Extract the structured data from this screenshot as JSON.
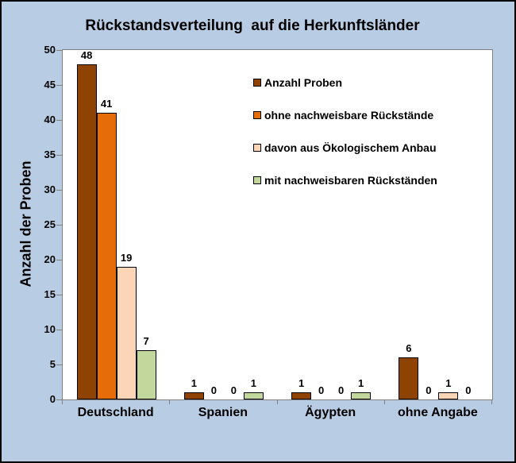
{
  "chart_data": {
    "type": "bar",
    "title": "Rückstandsverteilung  auf die Herkunftsländer",
    "ylabel": "Anzahl der Proben",
    "xlabel": "",
    "categories": [
      "Deutschland",
      "Spanien",
      "Ägypten",
      "ohne Angabe"
    ],
    "series": [
      {
        "name": "Anzahl Proben",
        "color": "#8E4305",
        "values": [
          48,
          1,
          1,
          6
        ]
      },
      {
        "name": "ohne nachweisbare Rückstände",
        "color": "#E66C09",
        "values": [
          41,
          0,
          0,
          0
        ]
      },
      {
        "name": "davon aus Ökologischem Anbau",
        "color": "#FBD5B5",
        "values": [
          19,
          0,
          0,
          1
        ]
      },
      {
        "name": "mit nachweisbaren Rückständen",
        "color": "#C3D69B",
        "values": [
          7,
          1,
          1,
          0
        ]
      }
    ],
    "ylim": [
      0,
      50
    ],
    "ytick_step": 5,
    "grid": false,
    "legend_position": "inside-top-right",
    "value_labels": true
  },
  "colors": {
    "background": "#B8CCE4",
    "plot_background": "#FFFFFF",
    "axis": "#808080",
    "bar_border": "#000000",
    "text": "#000000",
    "frame_border": "#000000"
  }
}
